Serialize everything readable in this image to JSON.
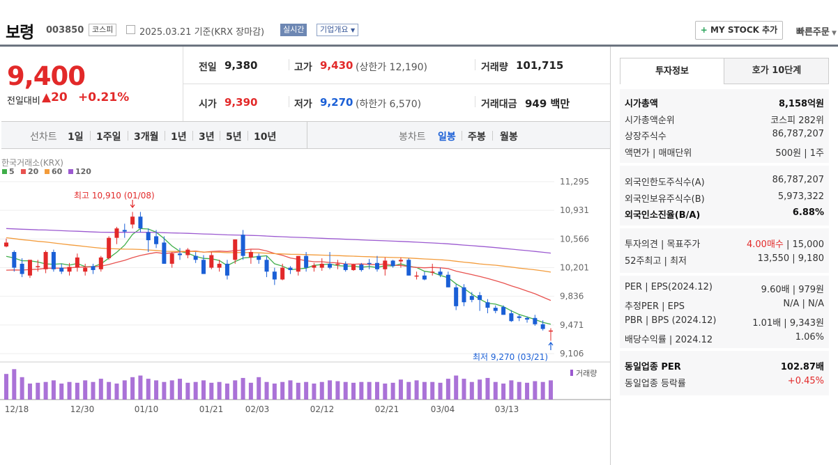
{
  "header": {
    "name": "보령",
    "code": "003850",
    "market": "코스피",
    "date": "2025.03.21 기준(KRX 장마감)",
    "realtime": "실시간",
    "overview": "기업개요",
    "mystock": "MY STOCK 추가",
    "quick": "빠른주문"
  },
  "price": {
    "current": "9,400",
    "change_label": "전일대비",
    "change": "▲20",
    "change_pct": "+0.21%"
  },
  "summary": {
    "prev_label": "전일",
    "prev": "9,380",
    "high_label": "고가",
    "high": "9,430",
    "upper_limit": "(상한가 12,190)",
    "volume_label": "거래량",
    "volume": "101,715",
    "open_label": "시가",
    "open": "9,390",
    "low_label": "저가",
    "low": "9,270",
    "lower_limit": "(하한가 6,570)",
    "amount_label": "거래대금",
    "amount": "949 백만"
  },
  "periods": {
    "label": "선차트",
    "items": [
      "1일",
      "1주일",
      "3개월",
      "1년",
      "3년",
      "5년",
      "10년"
    ]
  },
  "candles": {
    "label": "봉차트",
    "items": [
      "일봉",
      "주봉",
      "월봉"
    ],
    "active": "일봉"
  },
  "chart_data": {
    "type": "candlestick",
    "source": "한국거래소(KRX)",
    "legend": [
      {
        "name": "5",
        "color": "#3fae49"
      },
      {
        "name": "20",
        "color": "#e8524f"
      },
      {
        "name": "60",
        "color": "#f39b3a"
      },
      {
        "name": "120",
        "color": "#9b59d0"
      }
    ],
    "y_ticks": [
      "11,295",
      "10,931",
      "10,566",
      "10,201",
      "9,836",
      "9,471",
      "9,106"
    ],
    "y_min": 9106,
    "y_max": 11295,
    "x_labels": [
      "12/18",
      "12/30",
      "01/10",
      "01/21",
      "02/03",
      "02/12",
      "02/21",
      "03/04",
      "03/13"
    ],
    "max_label": "최고 10,910 (01/08)",
    "min_label": "최저 9,270 (03/21)",
    "volume_label": "거래량",
    "ohlc": [
      [
        10470,
        10570,
        10460,
        10520
      ],
      [
        10400,
        10420,
        10150,
        10200
      ],
      [
        10250,
        10320,
        10080,
        10120
      ],
      [
        10100,
        10300,
        10070,
        10300
      ],
      [
        10210,
        10300,
        10150,
        10220
      ],
      [
        10180,
        10420,
        10130,
        10400
      ],
      [
        10400,
        10430,
        10150,
        10180
      ],
      [
        10200,
        10250,
        10120,
        10150
      ],
      [
        10150,
        10260,
        10100,
        10210
      ],
      [
        10200,
        10380,
        10150,
        10330
      ],
      [
        10150,
        10250,
        10100,
        10200
      ],
      [
        10220,
        10250,
        10120,
        10170
      ],
      [
        10180,
        10350,
        10150,
        10330
      ],
      [
        10320,
        10600,
        10300,
        10580
      ],
      [
        10580,
        10720,
        10500,
        10700
      ],
      [
        10680,
        10760,
        10580,
        10660
      ],
      [
        10750,
        10910,
        10700,
        10850
      ],
      [
        10850,
        10910,
        10650,
        10700
      ],
      [
        10650,
        10700,
        10400,
        10550
      ],
      [
        10600,
        10680,
        10450,
        10500
      ],
      [
        10520,
        10600,
        10250,
        10250
      ],
      [
        10250,
        10400,
        10200,
        10380
      ],
      [
        10380,
        10450,
        10300,
        10360
      ],
      [
        10360,
        10450,
        10320,
        10430
      ],
      [
        10350,
        10400,
        10260,
        10300
      ],
      [
        10300,
        10360,
        10120,
        10120
      ],
      [
        10200,
        10400,
        10180,
        10360
      ],
      [
        10200,
        10300,
        10150,
        10250
      ],
      [
        10250,
        10300,
        10050,
        10100
      ],
      [
        10300,
        10560,
        10250,
        10560
      ],
      [
        10620,
        10680,
        10300,
        10350
      ],
      [
        10330,
        10430,
        10250,
        10400
      ],
      [
        10350,
        10380,
        10250,
        10300
      ],
      [
        10300,
        10350,
        10080,
        10150
      ],
      [
        10150,
        10200,
        9980,
        10050
      ],
      [
        10050,
        10250,
        10040,
        10200
      ],
      [
        10200,
        10220,
        10120,
        10170
      ],
      [
        10150,
        10350,
        10100,
        10350
      ],
      [
        10350,
        10400,
        10150,
        10200
      ],
      [
        10200,
        10260,
        10150,
        10230
      ],
      [
        10200,
        10320,
        10160,
        10250
      ],
      [
        10250,
        10400,
        10180,
        10200
      ],
      [
        10250,
        10300,
        10180,
        10250
      ],
      [
        10250,
        10280,
        10150,
        10170
      ],
      [
        10170,
        10250,
        10160,
        10240
      ],
      [
        10240,
        10260,
        10150,
        10170
      ],
      [
        10260,
        10310,
        10180,
        10250
      ],
      [
        10260,
        10350,
        10150,
        10180
      ],
      [
        10180,
        10330,
        10100,
        10290
      ],
      [
        10290,
        10300,
        10200,
        10220
      ],
      [
        10280,
        10330,
        10200,
        10300
      ],
      [
        10300,
        10320,
        10100,
        10100
      ],
      [
        10100,
        10150,
        10050,
        10100
      ],
      [
        10100,
        10150,
        10040,
        10050
      ],
      [
        10150,
        10250,
        10100,
        10150
      ],
      [
        10150,
        10200,
        10080,
        10110
      ],
      [
        10110,
        10150,
        9950,
        9950
      ],
      [
        9950,
        9990,
        9660,
        9710
      ],
      [
        9950,
        9990,
        9710,
        9760
      ],
      [
        9840,
        9890,
        9760,
        9790
      ],
      [
        9850,
        9890,
        9650,
        9790
      ],
      [
        9760,
        9800,
        9620,
        9690
      ],
      [
        9690,
        9720,
        9620,
        9650
      ],
      [
        9700,
        9720,
        9600,
        9600
      ],
      [
        9620,
        9660,
        9510,
        9520
      ],
      [
        9580,
        9600,
        9520,
        9560
      ],
      [
        9560,
        9580,
        9500,
        9540
      ],
      [
        9560,
        9600,
        9460,
        9480
      ],
      [
        9480,
        9530,
        9400,
        9420
      ],
      [
        9390,
        9430,
        9270,
        9400
      ]
    ],
    "volume": [
      32,
      38,
      28,
      20,
      21,
      22,
      24,
      20,
      22,
      21,
      24,
      22,
      26,
      22,
      20,
      24,
      28,
      30,
      26,
      24,
      22,
      24,
      26,
      21,
      22,
      24,
      21,
      22,
      20,
      24,
      27,
      21,
      28,
      22,
      20,
      22,
      24,
      21,
      22,
      20,
      22,
      24,
      23,
      22,
      21,
      22,
      22,
      22,
      20,
      21,
      25,
      22,
      24,
      22,
      22,
      21,
      26,
      30,
      26,
      22,
      25,
      27,
      22,
      20,
      24,
      22,
      21,
      23,
      22,
      24
    ]
  },
  "info_tabs": {
    "active": "투자정보",
    "other": "호가 10단계"
  },
  "info": [
    {
      "k": "시가총액",
      "v": "8,158억원",
      "bold": true
    },
    {
      "k": "시가총액순위",
      "v": "코스피 282위"
    },
    {
      "k": "상장주식수",
      "v": "86,787,207"
    },
    {
      "k": "액면가 | 매매단위",
      "v": "500원 | 1주"
    }
  ],
  "foreign": [
    {
      "k": "외국인한도주식수(A)",
      "v": "86,787,207"
    },
    {
      "k": "외국인보유주식수(B)",
      "v": "5,973,322"
    },
    {
      "k": "외국인소진율(B/A)",
      "v": "6.88%",
      "bold": true
    }
  ],
  "opinion": [
    {
      "k": "투자의견 | 목표주가",
      "v1": "4.00매수",
      "v2": "| 15,000"
    },
    {
      "k": "52주최고 | 최저",
      "v1": "13,550",
      "v2": "| 9,180"
    }
  ],
  "valuation": [
    {
      "k": "PER | EPS(2024.12)",
      "v": "9.60배 | 979원"
    },
    {
      "k": "추정PER | EPS",
      "v": "N/A | N/A"
    },
    {
      "k": "PBR | BPS (2024.12)",
      "v": "1.01배 | 9,343원"
    },
    {
      "k": "배당수익률 | 2024.12",
      "v": "1.06%"
    }
  ],
  "industry": [
    {
      "k": "동일업종 PER",
      "v": "102.87배",
      "bold": true
    },
    {
      "k": "동일업종 등락률",
      "v": "+0.45%",
      "red": true
    }
  ]
}
